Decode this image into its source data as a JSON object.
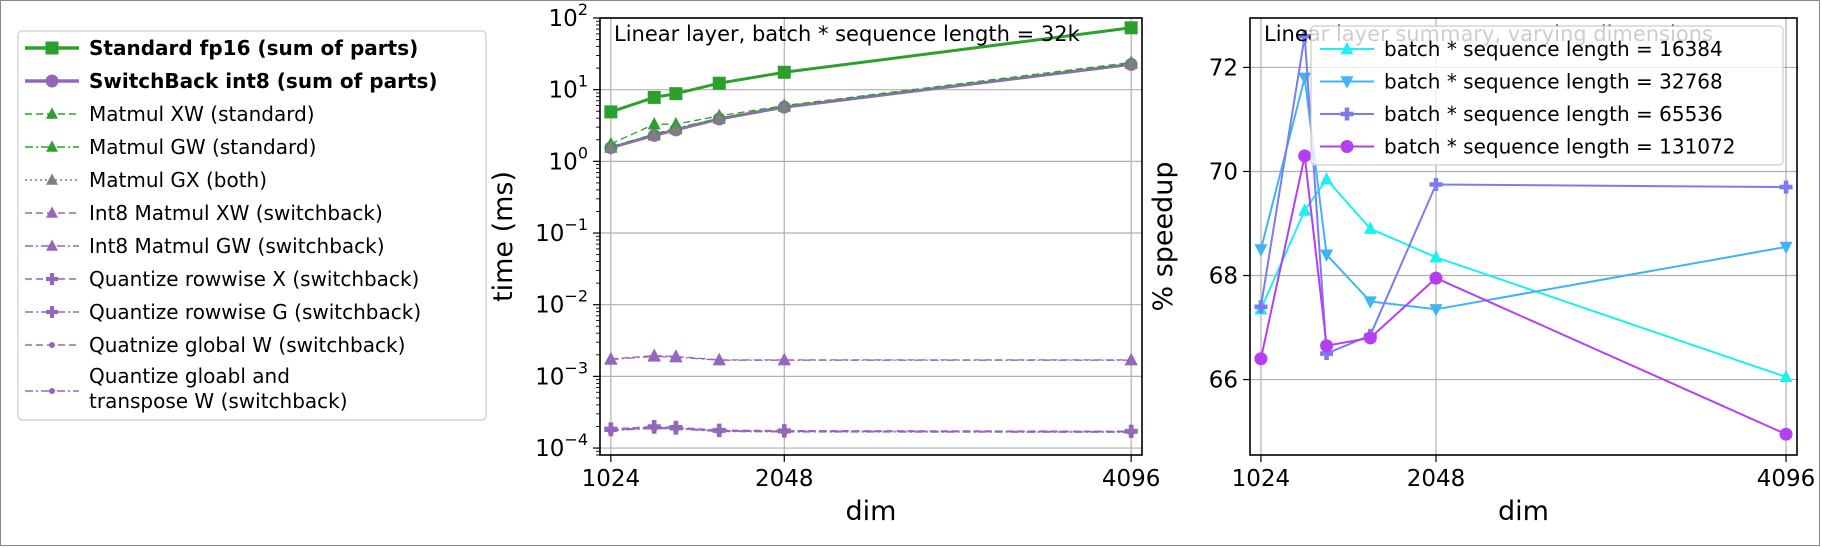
{
  "chart_data": [
    {
      "id": "legend-panel",
      "type": "legend",
      "entries": [
        {
          "label": "Standard fp16 (sum of parts)",
          "bold": true,
          "color": "#2ca02c",
          "marker": "square",
          "dash": "solid"
        },
        {
          "label": "SwitchBack int8 (sum of parts)",
          "bold": true,
          "color": "#9467bd",
          "marker": "circle",
          "dash": "solid"
        },
        {
          "label": "Matmul XW (standard)",
          "color": "#2ca02c",
          "marker": "triangle-up",
          "dash": "dashed"
        },
        {
          "label": "Matmul GW (standard)",
          "color": "#2ca02c",
          "marker": "triangle-up",
          "dash": "dashdot"
        },
        {
          "label": "Matmul GX (both)",
          "color": "#7f7f7f",
          "marker": "triangle-up",
          "dash": "dotted"
        },
        {
          "label": "Int8 Matmul XW (switchback)",
          "color": "#9467bd",
          "marker": "triangle-up",
          "dash": "dashed"
        },
        {
          "label": "Int8 Matmul GW (switchback)",
          "color": "#9467bd",
          "marker": "triangle-up",
          "dash": "dashdot"
        },
        {
          "label": "Quantize rowwise X (switchback)",
          "color": "#9467bd",
          "marker": "plus",
          "dash": "dashed"
        },
        {
          "label": "Quantize rowwise G (switchback)",
          "color": "#9467bd",
          "marker": "plus",
          "dash": "dashdot"
        },
        {
          "label": "Quatnize global W (switchback)",
          "color": "#9467bd",
          "marker": "dot",
          "dash": "dashed"
        },
        {
          "label": "Quantize gloabl and",
          "label2": "transpose W (switchback)",
          "color": "#9467bd",
          "marker": "dot",
          "dash": "dashdot"
        }
      ]
    },
    {
      "id": "time-chart",
      "type": "line",
      "title": "Linear layer, batch * sequence length = 32k",
      "xlabel": "dim",
      "ylabel": "time (ms)",
      "yscale": "log",
      "xlim": [
        960,
        4160
      ],
      "ylim": [
        8e-05,
        100
      ],
      "xticks": [
        1024,
        2048,
        4096
      ],
      "xtick_labels": [
        "1024",
        "2048",
        "4096"
      ],
      "yticks": [
        0.0001,
        0.001,
        0.01,
        0.1,
        1,
        10,
        100
      ],
      "ytick_labels": [
        {
          "base": "10",
          "exp": "−4"
        },
        {
          "base": "10",
          "exp": "−3"
        },
        {
          "base": "10",
          "exp": "−2"
        },
        {
          "base": "10",
          "exp": "−1"
        },
        {
          "base": "10",
          "exp": "0"
        },
        {
          "base": "10",
          "exp": "1"
        },
        {
          "base": "10",
          "exp": "2"
        }
      ],
      "grid": true,
      "x": [
        1024,
        1280,
        1408,
        1664,
        2048,
        4096
      ],
      "series": [
        {
          "name": "Standard fp16 (sum of parts)",
          "color": "#2ca02c",
          "marker": "square",
          "dash": "solid",
          "width": 3,
          "values": [
            4.9,
            7.8,
            8.8,
            12.3,
            17.5,
            73
          ]
        },
        {
          "name": "SwitchBack int8 (sum of parts)",
          "color": "#9467bd",
          "marker": "circle",
          "dash": "solid",
          "width": 3,
          "values": [
            1.55,
            2.3,
            2.75,
            3.9,
            5.7,
            22.5
          ]
        },
        {
          "name": "Matmul XW (standard)",
          "color": "#2ca02c",
          "marker": "triangle-up",
          "dash": "dashed",
          "width": 1.3,
          "values": [
            1.75,
            3.3,
            3.3,
            4.3,
            6.0,
            24
          ]
        },
        {
          "name": "Matmul GW (standard)",
          "color": "#2ca02c",
          "marker": "triangle-up",
          "dash": "dashdot",
          "width": 1.3,
          "values": [
            1.6,
            2.4,
            2.9,
            4.0,
            5.9,
            23
          ]
        },
        {
          "name": "Matmul GX (both)",
          "color": "#7f7f7f",
          "marker": "triangle-up",
          "dash": "dotted",
          "width": 1.3,
          "values": [
            1.55,
            2.3,
            2.8,
            3.95,
            5.8,
            23
          ]
        },
        {
          "name": "Int8 Matmul XW (switchback)",
          "color": "#9467bd",
          "marker": "triangle-up",
          "dash": "dashed",
          "width": 1.3,
          "values": [
            0.00175,
            0.00195,
            0.0019,
            0.0017,
            0.0017,
            0.0017
          ]
        },
        {
          "name": "Int8 Matmul GW (switchback)",
          "color": "#9467bd",
          "marker": "triangle-up",
          "dash": "dashdot",
          "width": 1.3,
          "values": [
            0.00172,
            0.0019,
            0.00185,
            0.00168,
            0.00168,
            0.00168
          ]
        },
        {
          "name": "Quantize rowwise X (switchback)",
          "color": "#9467bd",
          "marker": "plus",
          "dash": "dashed",
          "width": 1.3,
          "values": [
            0.000185,
            0.0002,
            0.000195,
            0.000178,
            0.000175,
            0.000172
          ]
        },
        {
          "name": "Quantize rowwise G (switchback)",
          "color": "#9467bd",
          "marker": "plus",
          "dash": "dashdot",
          "width": 1.3,
          "values": [
            0.00018,
            0.000195,
            0.00019,
            0.000175,
            0.000172,
            0.00017
          ]
        },
        {
          "name": "Quatnize global W (switchback)",
          "color": "#9467bd",
          "marker": "dot",
          "dash": "dashed",
          "width": 1.3,
          "values": [
            0.000178,
            0.00019,
            0.000188,
            0.000172,
            0.00017,
            0.000168
          ]
        },
        {
          "name": "Quantize gloabl and transpose W (switchback)",
          "color": "#9467bd",
          "marker": "dot",
          "dash": "dashdot",
          "width": 1.3,
          "values": [
            0.000175,
            0.000188,
            0.000185,
            0.00017,
            0.000168,
            0.000166
          ]
        }
      ]
    },
    {
      "id": "speedup-chart",
      "type": "line",
      "title": "Linear layer summary, varying dimensions",
      "xlabel": "dim",
      "ylabel": "% speedup",
      "yscale": "linear",
      "xlim": [
        960,
        4160
      ],
      "ylim": [
        64.55,
        72.95
      ],
      "xticks": [
        1024,
        2048,
        4096
      ],
      "xtick_labels": [
        "1024",
        "2048",
        "4096"
      ],
      "yticks": [
        66,
        68,
        70,
        72
      ],
      "ytick_labels": [
        "66",
        "68",
        "70",
        "72"
      ],
      "grid": true,
      "legend_position": "upper-right",
      "x": [
        1024,
        1280,
        1408,
        1664,
        2048,
        4096
      ],
      "series": [
        {
          "name": "batch * sequence length = 16384",
          "color": "#1cf0f0",
          "marker": "triangle-up",
          "values": [
            67.35,
            69.25,
            69.85,
            68.9,
            68.35,
            66.05
          ]
        },
        {
          "name": "batch * sequence length = 32768",
          "color": "#3fb4f5",
          "marker": "triangle-down",
          "values": [
            68.5,
            71.8,
            68.4,
            67.5,
            67.35,
            68.55
          ]
        },
        {
          "name": "batch * sequence length = 65536",
          "color": "#7b7cf2",
          "marker": "plus",
          "values": [
            67.4,
            72.6,
            66.5,
            66.85,
            69.75,
            69.7
          ]
        },
        {
          "name": "batch * sequence length = 131072",
          "color": "#b53ff0",
          "marker": "circle",
          "values": [
            66.4,
            70.3,
            66.65,
            66.8,
            67.95,
            64.95
          ]
        }
      ]
    }
  ]
}
